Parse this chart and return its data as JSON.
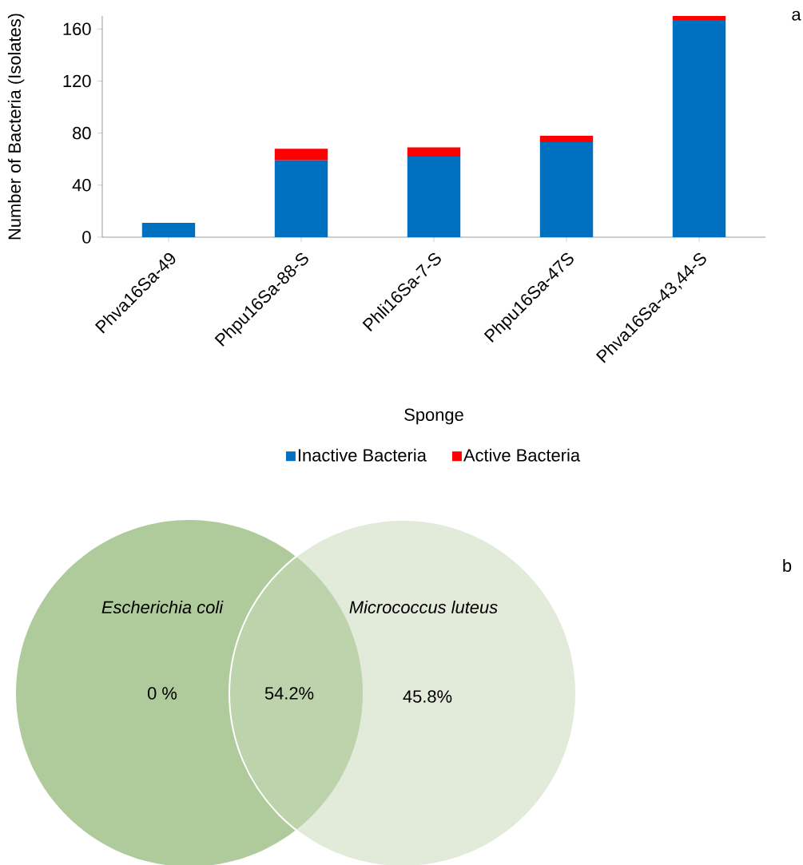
{
  "chart_data": [
    {
      "type": "bar",
      "stacked": true,
      "xlabel": "Sponge",
      "ylabel": "Number of Bacteria (Isolates)",
      "categories": [
        "Phva16Sa-49",
        "Phpu16Sa-88-S",
        "Phli16Sa-7-S",
        "Phpu16Sa-47S",
        "Phva16Sa-43,44-S"
      ],
      "series": [
        {
          "name": "Inactive Bacteria",
          "color": "#0070c0",
          "values": [
            11,
            59,
            62,
            73,
            167
          ]
        },
        {
          "name": "Active Bacteria",
          "color": "#ff0000",
          "values": [
            0,
            9,
            7,
            5,
            3
          ]
        }
      ],
      "ylim": [
        0,
        170
      ],
      "yticks": [
        0,
        40,
        80,
        120,
        160
      ],
      "legend": "bottom",
      "annotations": [
        "a"
      ]
    },
    {
      "type": "other",
      "categories": [
        null,
        null,
        null
      ],
      "value_labels": [
        "0 %",
        "54.2%",
        "45.8%"
      ],
      "colors": [
        "#b0cb9b",
        "#bdd3ac",
        "#e2ead9"
      ],
      "annotations": [
        "Escherichia coli",
        "Micrococcus luteus",
        "b"
      ]
    }
  ]
}
